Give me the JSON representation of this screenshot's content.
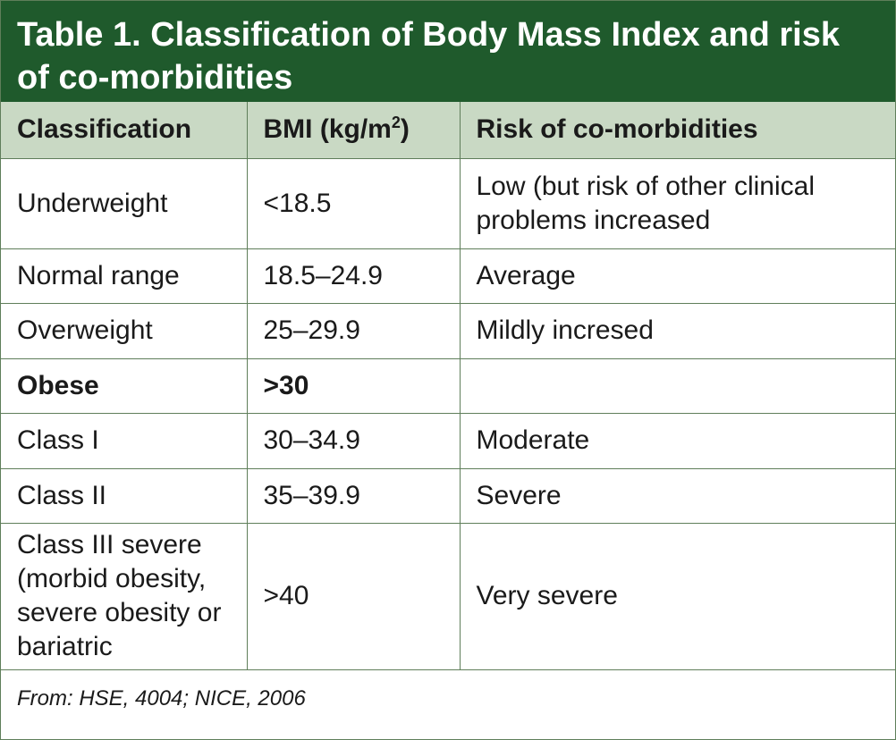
{
  "title": "Table 1. Classification of Body Mass Index and risk of co-morbidities",
  "headers": {
    "classification": "Classification",
    "bmi_prefix": "BMI (kg/m",
    "bmi_sup": "2",
    "bmi_suffix": ")",
    "risk": "Risk of co-morbidities"
  },
  "rows": [
    {
      "classification": "Underweight",
      "bmi": "<18.5",
      "risk": "Low (but risk of other clinical problems increased"
    },
    {
      "classification": "Normal range",
      "bmi": "18.5–24.9",
      "risk": "Average"
    },
    {
      "classification": "Overweight",
      "bmi": "25–29.9",
      "risk": "Mildly incresed"
    },
    {
      "classification": "Obese",
      "bmi": ">30",
      "risk": ""
    },
    {
      "classification": "Class I",
      "bmi": "30–34.9",
      "risk": "Moderate"
    },
    {
      "classification": "Class II",
      "bmi": "35–39.9",
      "risk": "Severe"
    },
    {
      "classification": "Class III severe (morbid obesity, severe obesity or bariatric",
      "bmi": ">40",
      "risk": "Very severe"
    }
  ],
  "source": "From: HSE, 4004; NICE, 2006",
  "colors": {
    "title_background": "#1f5a2c",
    "header_background": "#c9d9c4",
    "border": "#5f7e5a"
  }
}
